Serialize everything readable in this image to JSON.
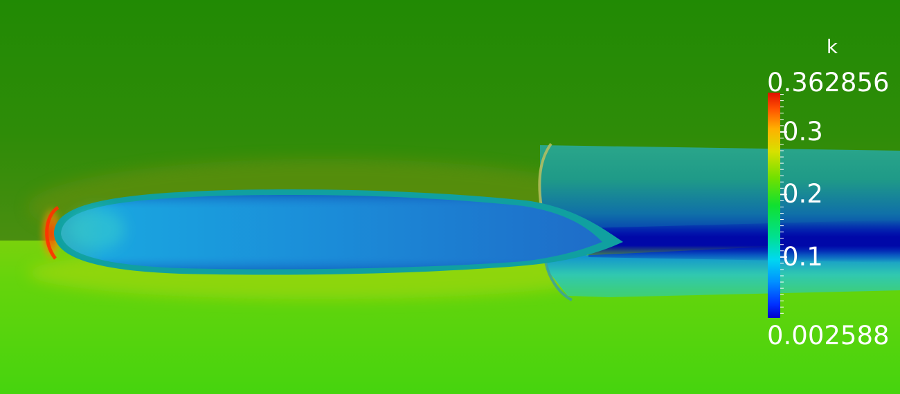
{
  "legend": {
    "title": "k",
    "max_label": "0.362856",
    "min_label": "0.002588",
    "range": [
      0.002588,
      0.362856
    ],
    "tick_labels": [
      "0.3",
      "0.2",
      "0.1"
    ],
    "tick_values": [
      0.3,
      0.2,
      0.1
    ],
    "colormap": "rainbow (blue to red)"
  },
  "colors": {
    "freestream_upper": "#2a8a06",
    "freestream_lower": "#58d60c",
    "body_interior": "#1f88d8",
    "wake_core": "#0010b0",
    "leading_edge_peak": "#ff4a00"
  }
}
